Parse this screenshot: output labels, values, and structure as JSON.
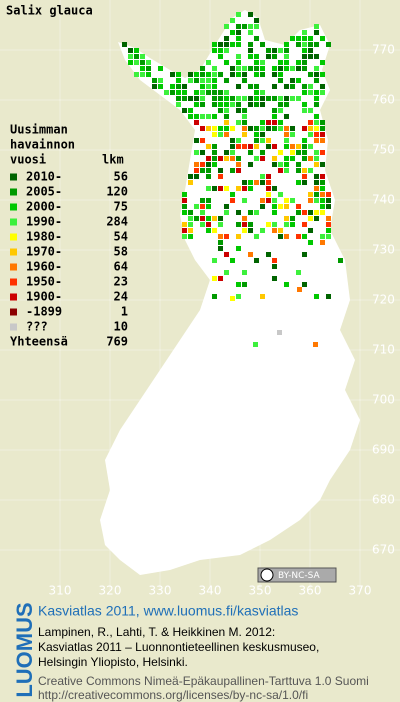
{
  "title": "Salix glauca",
  "legend": {
    "heading": [
      "Uusimman",
      "havainnon",
      "vuosi"
    ],
    "count_heading": "lkm",
    "rows": [
      {
        "label": "2010-",
        "count": 56,
        "color": "#006400"
      },
      {
        "label": "2005-",
        "count": 120,
        "color": "#009a00"
      },
      {
        "label": "2000-",
        "count": 75,
        "color": "#00c800"
      },
      {
        "label": "1990-",
        "count": 284,
        "color": "#3cf03c"
      },
      {
        "label": "1980-",
        "count": 54,
        "color": "#ffff00"
      },
      {
        "label": "1970-",
        "count": 58,
        "color": "#ffc800"
      },
      {
        "label": "1960-",
        "count": 64,
        "color": "#ff7800"
      },
      {
        "label": "1950-",
        "count": 23,
        "color": "#ff3200"
      },
      {
        "label": "1900-",
        "count": 24,
        "color": "#cc0000"
      },
      {
        "label": "-1899",
        "count": 1,
        "color": "#8b0000"
      },
      {
        "label": "???",
        "count": 10,
        "color": "#c8c8c8"
      }
    ],
    "total": {
      "label": "Yhteensä",
      "count": 769
    }
  },
  "grid": {
    "y_labels": [
      770,
      760,
      750,
      740,
      730,
      720,
      710,
      700,
      690,
      680,
      670
    ],
    "x_labels": [
      310,
      320,
      330,
      340,
      350,
      360,
      370
    ]
  },
  "license_badge": "BY-NC-SA",
  "footer": {
    "logo": "LUOMUS",
    "headline": "Kasviatlas 2011, www.luomus.fi/kasviatlas",
    "citation": [
      "Lampinen, R., Lahti, T. & Heikkinen M. 2012:",
      "Kasviatlas 2011 – Luonnontieteellinen keskusmuseo,",
      "Helsingin Yliopisto, Helsinki."
    ],
    "license": [
      "Creative Commons Nimeä-Epäkaupallinen-Tarttuva 1.0 Suomi",
      "http://creativecommons.org/licenses/by-nc-sa/1.0/fi"
    ]
  }
}
